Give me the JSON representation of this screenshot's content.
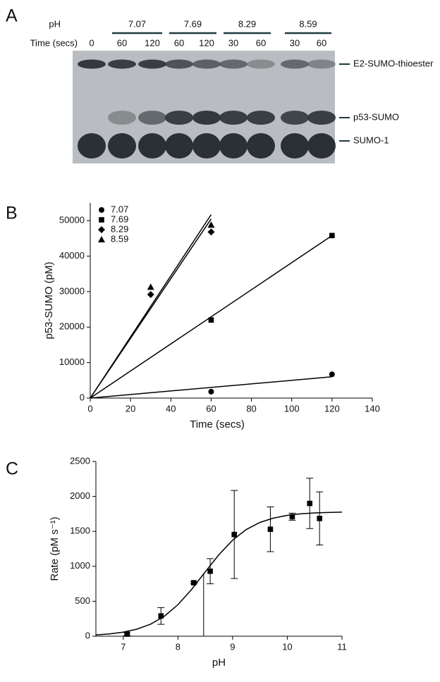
{
  "panel_labels": [
    "A",
    "B",
    "C"
  ],
  "blot": {
    "ph_label": "pH",
    "time_label": "Time (secs)",
    "ph_groups": [
      "7.07",
      "7.69",
      "8.29",
      "8.59"
    ],
    "lanes": [
      "0",
      "60",
      "120",
      "60",
      "120",
      "30",
      "60",
      "30",
      "60"
    ],
    "bands": [
      "E2-SUMO-thioester",
      "p53-SUMO",
      "SUMO-1"
    ]
  },
  "chart_data": [
    {
      "type": "scatter",
      "xlabel": "Time (secs)",
      "ylabel": "p53-SUMO (pM)",
      "xlim": [
        0,
        140
      ],
      "xticks": [
        0,
        20,
        40,
        60,
        80,
        100,
        120,
        140
      ],
      "ylim": [
        0,
        55000
      ],
      "yticks": [
        0,
        10000,
        20000,
        30000,
        40000,
        50000
      ],
      "legend": "upper left",
      "color": "#000000",
      "series": [
        {
          "name": "7.07",
          "marker": "circle",
          "x": [
            60,
            120
          ],
          "values": [
            1800,
            6700
          ],
          "fit": {
            "x": [
              0,
              120
            ],
            "values": [
              0,
              6000
            ]
          }
        },
        {
          "name": "7.69",
          "marker": "square",
          "x": [
            60,
            120
          ],
          "values": [
            22000,
            45800
          ],
          "fit": {
            "x": [
              0,
              120
            ],
            "values": [
              0,
              45800
            ]
          }
        },
        {
          "name": "8.29",
          "marker": "diamond",
          "x": [
            30,
            60
          ],
          "values": [
            29200,
            46800
          ],
          "fit": {
            "x": [
              0,
              60
            ],
            "values": [
              0,
              50500
            ]
          }
        },
        {
          "name": "8.59",
          "marker": "triangle",
          "x": [
            30,
            60
          ],
          "values": [
            31300,
            48800
          ],
          "fit": {
            "x": [
              0,
              60
            ],
            "values": [
              0,
              51700
            ]
          }
        }
      ]
    },
    {
      "type": "scatter",
      "xlabel": "pH",
      "ylabel": "Rate (pM s⁻¹)",
      "xlim": [
        6.5,
        11
      ],
      "xticks": [
        7,
        8,
        9,
        10,
        11
      ],
      "ylim": [
        0,
        2500
      ],
      "yticks": [
        0,
        500,
        1000,
        1500,
        2000,
        2500
      ],
      "color": "#000000",
      "series": [
        {
          "marker": "square",
          "x": [
            7.07,
            7.69,
            8.29,
            8.59,
            9.03,
            9.69,
            10.09,
            10.41,
            10.59
          ],
          "values": [
            30,
            290,
            765,
            930,
            1455,
            1530,
            1710,
            1900,
            1685
          ],
          "errors": [
            20,
            120,
            15,
            180,
            630,
            320,
            50,
            360,
            380
          ]
        }
      ],
      "fit": {
        "x": [
          6.5,
          6.75,
          7,
          7.25,
          7.5,
          7.75,
          8,
          8.25,
          8.5,
          8.75,
          9,
          9.25,
          9.5,
          9.75,
          10,
          10.25,
          10.5,
          10.75,
          11
        ],
        "values": [
          19,
          33,
          58,
          101,
          172,
          285,
          451,
          669,
          921,
          1167,
          1374,
          1527,
          1628,
          1691,
          1729,
          1751,
          1764,
          1771,
          1775
        ]
      },
      "midpoint": {
        "x": 8.47,
        "value": 900
      }
    }
  ]
}
